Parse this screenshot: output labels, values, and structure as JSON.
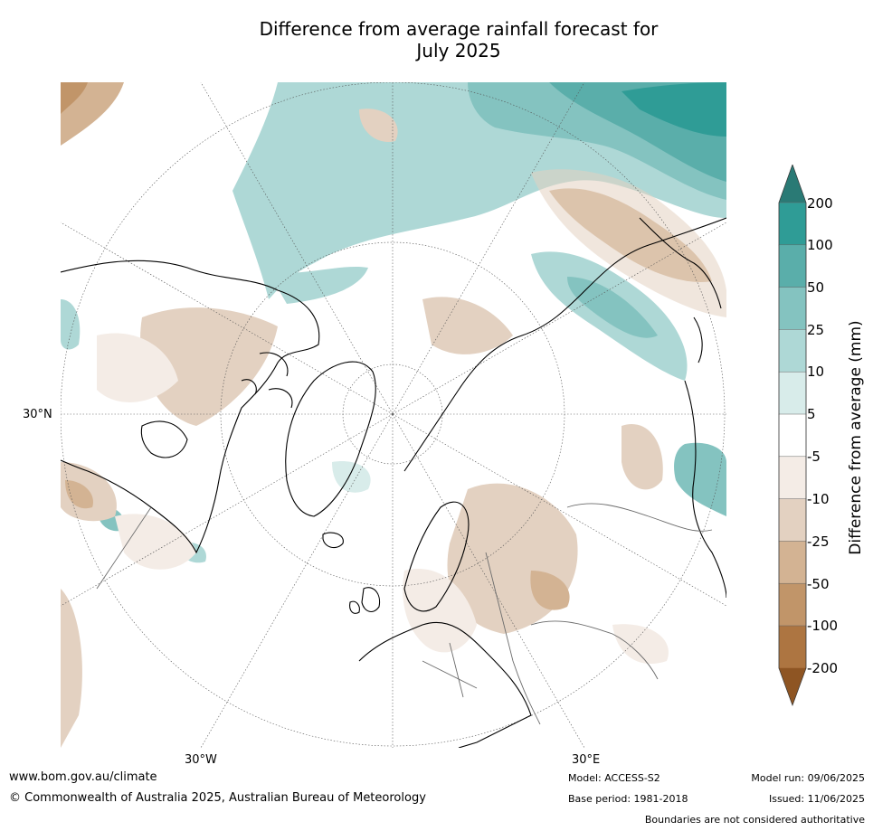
{
  "title_line1": "Difference from average rainfall forecast for",
  "title_line2": "July 2025",
  "lat_labels": {
    "lat30": "30°N"
  },
  "lon_labels": {
    "lon_w30": "30°W",
    "lon_e30": "30°E"
  },
  "colorbar": {
    "label": "Difference from average (mm)",
    "ticks": [
      "200",
      "100",
      "50",
      "25",
      "10",
      "5",
      "-5",
      "-10",
      "-25",
      "-50",
      "-100",
      "-200"
    ],
    "colors": {
      "over": "#2a7a75",
      "gt100": "#2f9c96",
      "50to100": "#5aaeaa",
      "25to50": "#84c3c0",
      "10to25": "#aed8d6",
      "5to10": "#d8ecea",
      "neutral": "#ffffff",
      "m5to10": "#f4ece6",
      "m10to25": "#e3d1c1",
      "m25to50": "#d3b393",
      "m50to100": "#c19569",
      "lt100": "#ad7541",
      "under": "#8e5523"
    }
  },
  "footer": {
    "url": "www.bom.gov.au/climate",
    "copyright": "© Commonwealth of Australia 2025, Australian Bureau of Meteorology",
    "model": "Model: ACCESS-S2",
    "base_period": "Base period: 1981-2018",
    "model_run": "Model run: 09/06/2025",
    "issued": "Issued: 11/06/2025",
    "boundaries": "Boundaries are not considered authoritative"
  }
}
